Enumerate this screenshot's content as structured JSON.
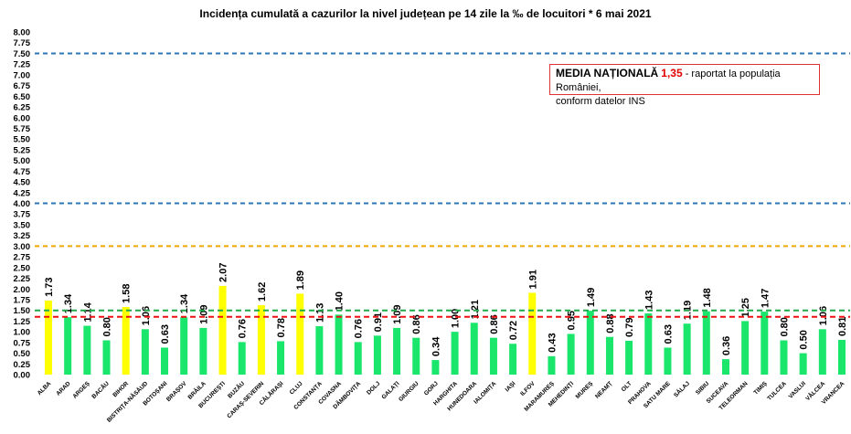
{
  "chart_data": {
    "type": "bar",
    "title": "Incidența cumulată a cazurilor la nivel județean pe 14 zile la ‰ de locuitori *   6 mai 2021",
    "xlabel": "",
    "ylabel": "",
    "ylim": [
      0,
      8
    ],
    "ytick_step": 0.25,
    "categories": [
      "ALBA",
      "ARAD",
      "ARGEȘ",
      "BACĂU",
      "BIHOR",
      "BISTRIȚA-NĂSĂUD",
      "BOTOȘANI",
      "BRAȘOV",
      "BRĂILA",
      "BUCUREȘTI",
      "BUZĂU",
      "CARAȘ-SEVERIN",
      "CĂLĂRAȘI",
      "CLUJ",
      "CONSTANȚA",
      "COVASNA",
      "DÂMBOVIȚA",
      "DOLJ",
      "GALAȚI",
      "GIURGIU",
      "GORJ",
      "HARGHITA",
      "HUNEDOARA",
      "IALOMIȚA",
      "IAȘI",
      "ILFOV",
      "MARAMUREȘ",
      "MEHEDINȚI",
      "MUREȘ",
      "NEAMȚ",
      "OLT",
      "PRAHOVA",
      "SATU MARE",
      "SĂLAJ",
      "SIBIU",
      "SUCEAVA",
      "TELEORMAN",
      "TIMIȘ",
      "TULCEA",
      "VASLUI",
      "VÂLCEA",
      "VRANCEA"
    ],
    "values": [
      1.73,
      1.34,
      1.14,
      0.8,
      1.58,
      1.06,
      0.63,
      1.34,
      1.09,
      2.07,
      0.76,
      1.62,
      0.78,
      1.89,
      1.13,
      1.4,
      0.76,
      0.91,
      1.09,
      0.86,
      0.34,
      1.0,
      1.21,
      0.86,
      0.72,
      1.91,
      0.43,
      0.95,
      1.49,
      0.88,
      0.79,
      1.43,
      0.63,
      1.19,
      1.48,
      0.36,
      1.25,
      1.47,
      0.8,
      0.5,
      1.06,
      0.81
    ],
    "highlight_threshold": 1.5,
    "colors": {
      "normal": "#19e66a",
      "highlight": "#ffff00"
    },
    "reference_lines": [
      {
        "value": 7.5,
        "color": "#2e75b6"
      },
      {
        "value": 4.0,
        "color": "#2e75b6"
      },
      {
        "value": 3.0,
        "color": "#f0a800"
      },
      {
        "value": 1.5,
        "color": "#1faa4a"
      },
      {
        "value": 1.35,
        "color": "#ee1111"
      }
    ],
    "annotation": {
      "label": "MEDIA NAȚIONALĂ",
      "value": "1,35",
      "text": " - raportat la populația României,",
      "text2": "conform datelor INS"
    },
    "legend": "none",
    "grid": false
  }
}
